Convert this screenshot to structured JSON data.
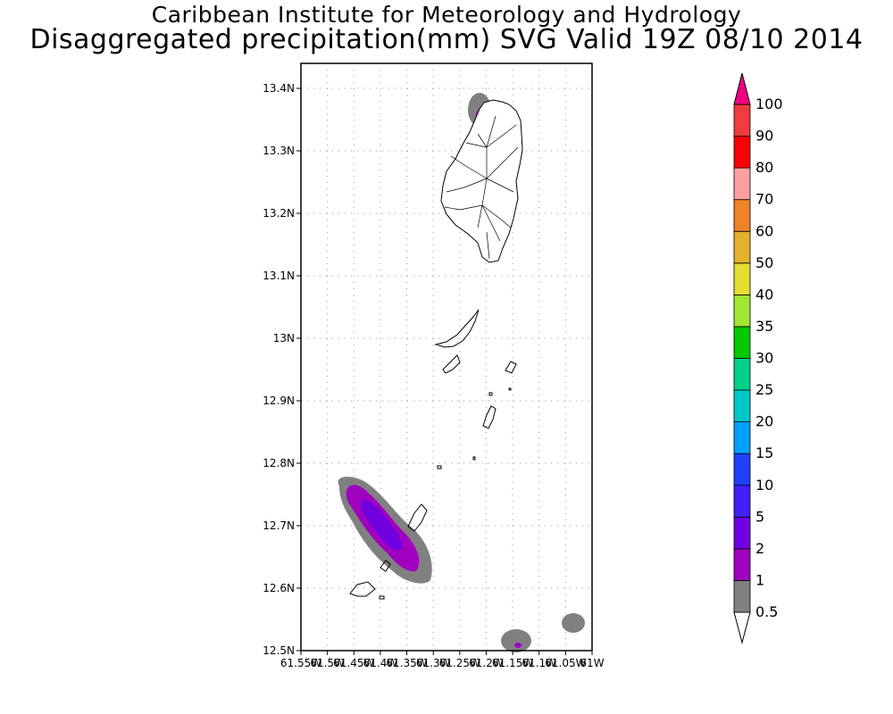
{
  "header": {
    "title": "Caribbean Institute for Meteorology and Hydrology",
    "subtitle": "Disaggregated precipitation(mm) SVG Valid 19Z 08/10 2014"
  },
  "map": {
    "lat_labels": [
      "13.4N",
      "13.3N",
      "13.2N",
      "13.1N",
      "13N",
      "12.9N",
      "12.8N",
      "12.7N",
      "12.6N",
      "12.5N"
    ],
    "lon_labels": [
      "61.55W",
      "61.5W",
      "61.45W",
      "61.4W",
      "61.35W",
      "61.3W",
      "61.25W",
      "61.2W",
      "61.15W",
      "61.1W",
      "61.05W",
      "61W"
    ],
    "lat_range": [
      12.5,
      13.44
    ],
    "lon_range": [
      -61.55,
      -61.0
    ],
    "grid": true
  },
  "colorbar": {
    "levels": [
      "0.5",
      "1",
      "2",
      "5",
      "10",
      "15",
      "20",
      "25",
      "30",
      "35",
      "40",
      "50",
      "60",
      "70",
      "80",
      "90",
      "100"
    ],
    "colors": [
      "#808080",
      "#a000c0",
      "#7000e0",
      "#4020ff",
      "#2040ff",
      "#00a0ff",
      "#00c8c8",
      "#00d08c",
      "#00c800",
      "#a0e632",
      "#e6dc32",
      "#e6af2d",
      "#f08228",
      "#ffa0a0",
      "#fa0000",
      "#f03c3c",
      "#f00082"
    ],
    "under_color": "#ffffff"
  }
}
